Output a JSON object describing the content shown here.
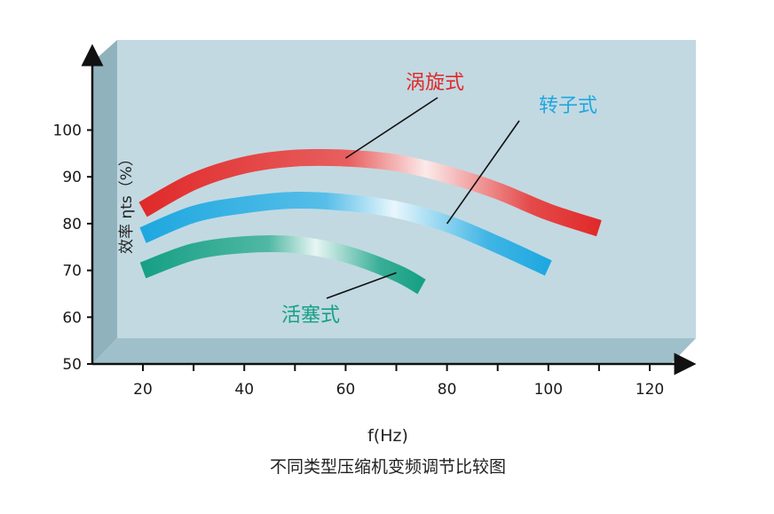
{
  "chart_data": {
    "type": "line",
    "xlabel": "f(Hz)",
    "ylabel": "效率 ηts（%）",
    "caption": "不同类型压缩机变频调节比较图",
    "xlim": [
      10,
      125
    ],
    "ylim": [
      50,
      110
    ],
    "x_ticks": [
      20,
      40,
      60,
      80,
      100,
      120
    ],
    "y_ticks": [
      50,
      60,
      70,
      80,
      90,
      100
    ],
    "grid": false,
    "series": [
      {
        "name": "涡旋式",
        "color": "#e02a2a",
        "x": [
          20,
          30,
          40,
          50,
          60,
          70,
          80,
          90,
          100,
          110
        ],
        "y": [
          83,
          89,
          92.5,
          94,
          94,
          93,
          90.5,
          87,
          82.5,
          79
        ]
      },
      {
        "name": "转子式",
        "color": "#1ea8e0",
        "x": [
          20,
          30,
          40,
          50,
          60,
          70,
          80,
          90,
          100
        ],
        "y": [
          77.5,
          82,
          84,
          85,
          84.5,
          83,
          80,
          75.5,
          70.5
        ]
      },
      {
        "name": "活塞式",
        "color": "#16a085",
        "x": [
          20,
          30,
          40,
          50,
          60,
          70,
          75
        ],
        "y": [
          70,
          74,
          75.5,
          75.5,
          73.5,
          69.5,
          66.5
        ]
      }
    ]
  }
}
